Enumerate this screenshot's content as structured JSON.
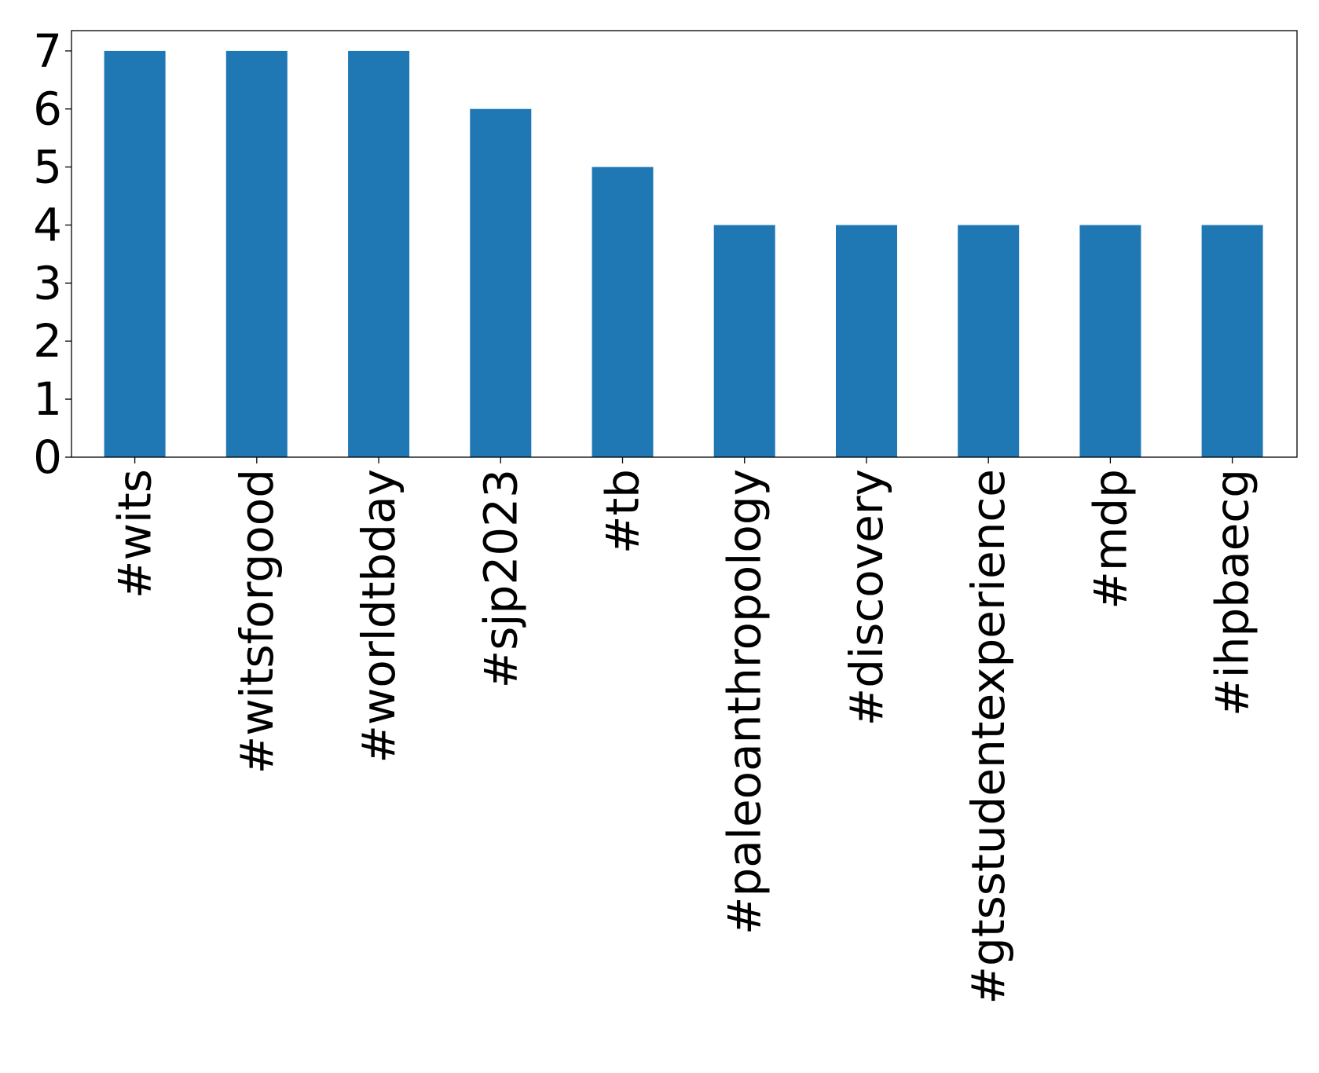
{
  "chart_data": {
    "type": "bar",
    "categories": [
      "#wits",
      "#witsforgood",
      "#worldtbday",
      "#sjp2023",
      "#tb",
      "#paleoanthropology",
      "#discovery",
      "#gtsstudentexperience",
      "#mdp",
      "#ihpbaecg"
    ],
    "values": [
      7,
      7,
      7,
      6,
      5,
      4,
      4,
      4,
      4,
      4
    ],
    "ylim": [
      0,
      7.35
    ],
    "yticks": [
      0,
      1,
      2,
      3,
      4,
      5,
      6,
      7
    ],
    "bar_color": "#1f77b4",
    "title": "",
    "xlabel": "",
    "ylabel": "",
    "grid": false,
    "legend": "none"
  }
}
